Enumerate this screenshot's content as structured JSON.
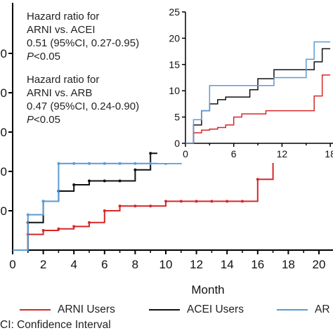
{
  "chart_data": [
    {
      "type": "line",
      "step": true,
      "xlabel": "Month",
      "ylabel": "",
      "xlim": [
        0,
        22
      ],
      "ylim": [
        0,
        25
      ],
      "x_ticks": [
        0,
        2,
        4,
        6,
        8,
        10,
        12,
        14,
        16,
        18,
        20
      ],
      "y_tick_labels_visible": [
        "0",
        "0",
        "0",
        "0",
        "0"
      ],
      "grid": false,
      "series": [
        {
          "name": "ARNI Users",
          "color": "#d62728",
          "x": [
            0,
            1,
            2,
            3,
            4,
            5,
            6,
            7,
            8,
            9,
            10,
            11,
            12,
            13,
            14,
            15,
            16,
            17,
            18,
            19,
            20,
            21,
            22
          ],
          "y": [
            0,
            2,
            2.5,
            2.7,
            3,
            3.5,
            5,
            5.6,
            5.6,
            5.6,
            6.2,
            6.2,
            6.2,
            6.2,
            6.2,
            6.2,
            9,
            13,
            13,
            13,
            13,
            13,
            13
          ]
        },
        {
          "name": "ACEI Users",
          "color": "#111111",
          "x": [
            0,
            1,
            2,
            3,
            4,
            5,
            6,
            7,
            8,
            9,
            10,
            11,
            12,
            13,
            14,
            15,
            16,
            17,
            18,
            19,
            20,
            21,
            22
          ],
          "y": [
            0,
            3.5,
            6.2,
            7.5,
            8.3,
            8.8,
            8.8,
            8.8,
            10.2,
            12.3,
            12.3,
            14,
            14,
            14,
            14,
            14,
            15.5,
            18,
            18,
            18,
            18,
            18,
            18
          ]
        },
        {
          "name": "AR",
          "color": "#5b9bd5",
          "x": [
            0,
            1,
            2,
            3,
            4,
            5,
            6,
            7,
            8,
            9,
            10,
            11,
            12,
            13,
            14,
            15,
            16,
            17,
            18,
            19,
            20,
            21,
            22
          ],
          "y": [
            0,
            4.5,
            6.2,
            11,
            11,
            11,
            11,
            11,
            11,
            11,
            11,
            12.5,
            12.5,
            12.5,
            12.5,
            16,
            19.3,
            19.3,
            19.3,
            19.3,
            19.3,
            19.3,
            19.3
          ]
        }
      ],
      "annotations": [
        {
          "line1": "Hazard ratio for",
          "line2": "ARNI vs. ACEI",
          "line3": "0.51 (95%CI, 0.27-0.95)",
          "p_symbol": "P",
          "p_value": "<0.05"
        },
        {
          "line1": "Hazard ratio for",
          "line2": "ARNI vs. ARB",
          "line3": "0.47 (95%CI, 0.24-0.90)",
          "p_symbol": "P",
          "p_value": "<0.05"
        }
      ],
      "legend": {
        "placement": "bottom",
        "entries": [
          "ARNI Users",
          "ACEI Users",
          "AR"
        ]
      },
      "footnote": "CI: Confidence Interval"
    },
    {
      "type": "line",
      "step": true,
      "inset": true,
      "xlabel": "",
      "ylabel": "",
      "xlim": [
        0,
        18
      ],
      "ylim": [
        0,
        25
      ],
      "x_ticks": [
        "0",
        "6",
        "12",
        "18"
      ],
      "y_ticks": [
        "0",
        "5",
        "10",
        "15",
        "20",
        "25"
      ],
      "grid": false,
      "series": [
        {
          "name": "ARNI Users",
          "color": "#d62728",
          "x": [
            0,
            1,
            2,
            3,
            4,
            5,
            6,
            7,
            8,
            9,
            10,
            11,
            12,
            13,
            14,
            15,
            16,
            17,
            18
          ],
          "y": [
            0,
            2,
            2.5,
            2.7,
            3,
            3.5,
            5,
            5.6,
            5.6,
            5.6,
            6.2,
            6.2,
            6.2,
            6.2,
            6.2,
            6.2,
            9,
            13,
            13
          ]
        },
        {
          "name": "ACEI Users",
          "color": "#111111",
          "x": [
            0,
            1,
            2,
            3,
            4,
            5,
            6,
            7,
            8,
            9,
            10,
            11,
            12,
            13,
            14,
            15,
            16,
            17,
            18
          ],
          "y": [
            0,
            3.5,
            6.2,
            7.5,
            8.3,
            8.8,
            8.8,
            8.8,
            10.2,
            12.3,
            12.3,
            14,
            14,
            14,
            14,
            14,
            15.5,
            18,
            18
          ]
        },
        {
          "name": "AR",
          "color": "#5b9bd5",
          "x": [
            0,
            1,
            2,
            3,
            4,
            5,
            6,
            7,
            8,
            9,
            10,
            11,
            12,
            13,
            14,
            15,
            16,
            17,
            18
          ],
          "y": [
            0,
            4.5,
            6.2,
            11,
            11,
            11,
            11,
            11,
            11,
            11,
            11,
            12.5,
            12.5,
            12.5,
            12.5,
            16,
            19.3,
            19.3,
            19.3
          ]
        }
      ]
    }
  ]
}
